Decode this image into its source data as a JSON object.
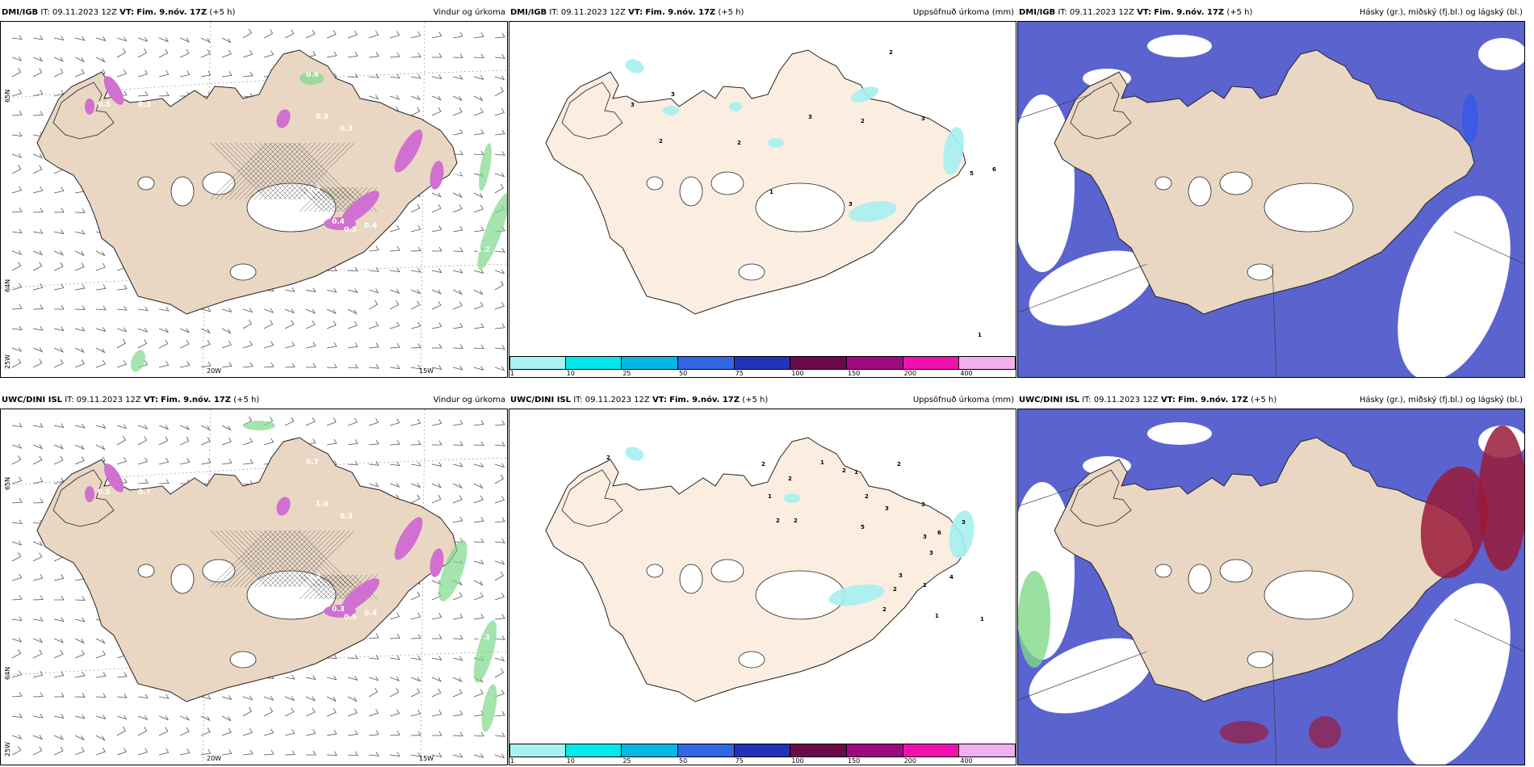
{
  "panels": [
    {
      "id": "p1",
      "source": "DMI/IGB",
      "it": "IT: 09.11.2023 12Z",
      "vt_label": "VT:",
      "vt": "Fim. 9.nóv. 17Z",
      "lead": "(+5 h)",
      "title": "Vindur og úrkoma",
      "labels": [
        "0.6",
        "0.3",
        "0.5",
        "0.3",
        "0.3",
        "0.3",
        "0.4",
        "0.4",
        "0.3",
        "1.2",
        "0.3",
        "0.3"
      ],
      "lon_ticks": [
        "20W",
        "15W"
      ],
      "lat_ticks": [
        "65N",
        "64N",
        "25W"
      ]
    },
    {
      "id": "p2",
      "source": "DMI/IGB",
      "it": "IT: 09.11.2023 12Z",
      "vt_label": "VT:",
      "vt": "Fim. 9.nóv. 17Z",
      "lead": "(+5 h)",
      "title": "Uppsöfnuð úrkoma (mm)",
      "labels": [
        "2",
        "3",
        "3",
        "3",
        "2",
        "2",
        "2",
        "3",
        "5",
        "6",
        "1",
        "3",
        "1"
      ]
    },
    {
      "id": "p3",
      "source": "DMI/IGB",
      "it": "IT: 09.11.2023 12Z",
      "vt_label": "VT:",
      "vt": "Fim. 9.nóv. 17Z",
      "lead": "(+5 h)",
      "title": "Hásky (gr.), miðský (fj.bl.) og lágský (bl.)"
    },
    {
      "id": "p4",
      "source": "UWC/DINI ISL",
      "it": "IT: 09.11.2023 12Z",
      "vt_label": "VT:",
      "vt": "Fim. 9.nóv. 17Z",
      "lead": "(+5 h)",
      "title": "Vindur og úrkoma",
      "labels": [
        "0.7",
        "0.7",
        "0.5",
        "1.0",
        "0.3",
        "0.3",
        "0.3",
        "0.4",
        "0.5",
        "0.3"
      ],
      "lon_ticks": [
        "20W",
        "15W"
      ],
      "lat_ticks": [
        "65N",
        "64N",
        "25W"
      ]
    },
    {
      "id": "p5",
      "source": "UWC/DINI ISL",
      "it": "IT: 09.11.2023 12Z",
      "vt_label": "VT:",
      "vt": "Fim. 9.nóv. 17Z",
      "lead": "(+5 h)",
      "title": "Uppsöfnuð úrkoma (mm)",
      "labels": [
        "2",
        "2",
        "1",
        "2",
        "1",
        "2",
        "1",
        "2",
        "2",
        "2",
        "2",
        "5",
        "3",
        "3",
        "3",
        "6",
        "3",
        "3",
        "4",
        "1",
        "2",
        "3",
        "2",
        "1",
        "1"
      ]
    },
    {
      "id": "p6",
      "source": "UWC/DINI ISL",
      "it": "IT: 09.11.2023 12Z",
      "vt_label": "VT:",
      "vt": "Fim. 9.nóv. 17Z",
      "lead": "(+5 h)",
      "title": "Hásky (gr.), miðský (fj.bl.) og lágský (bl.)"
    }
  ],
  "precip_legend": {
    "labels": [
      "1",
      "10",
      "25",
      "50",
      "75",
      "100",
      "150",
      "200",
      "400"
    ],
    "colors": [
      "#aaf2f2",
      "#00e8e8",
      "#00b8e6",
      "#3366e6",
      "#2233b8",
      "#6a0a4a",
      "#a00a80",
      "#f010b0",
      "#f0b0f0"
    ]
  },
  "colors": {
    "land": "#e9d7c4",
    "land_light": "#fbeee0",
    "sea": "#ffffff",
    "precip_green": "#7fd88a",
    "precip_magenta": "#d070d0",
    "precip_cyan": "#a6f0f0",
    "cloud_high": "#5a5acb",
    "cloud_mid": "#3b5be6",
    "cloud_low": "#64b4f0",
    "cloud_red": "#9a1a3a"
  }
}
